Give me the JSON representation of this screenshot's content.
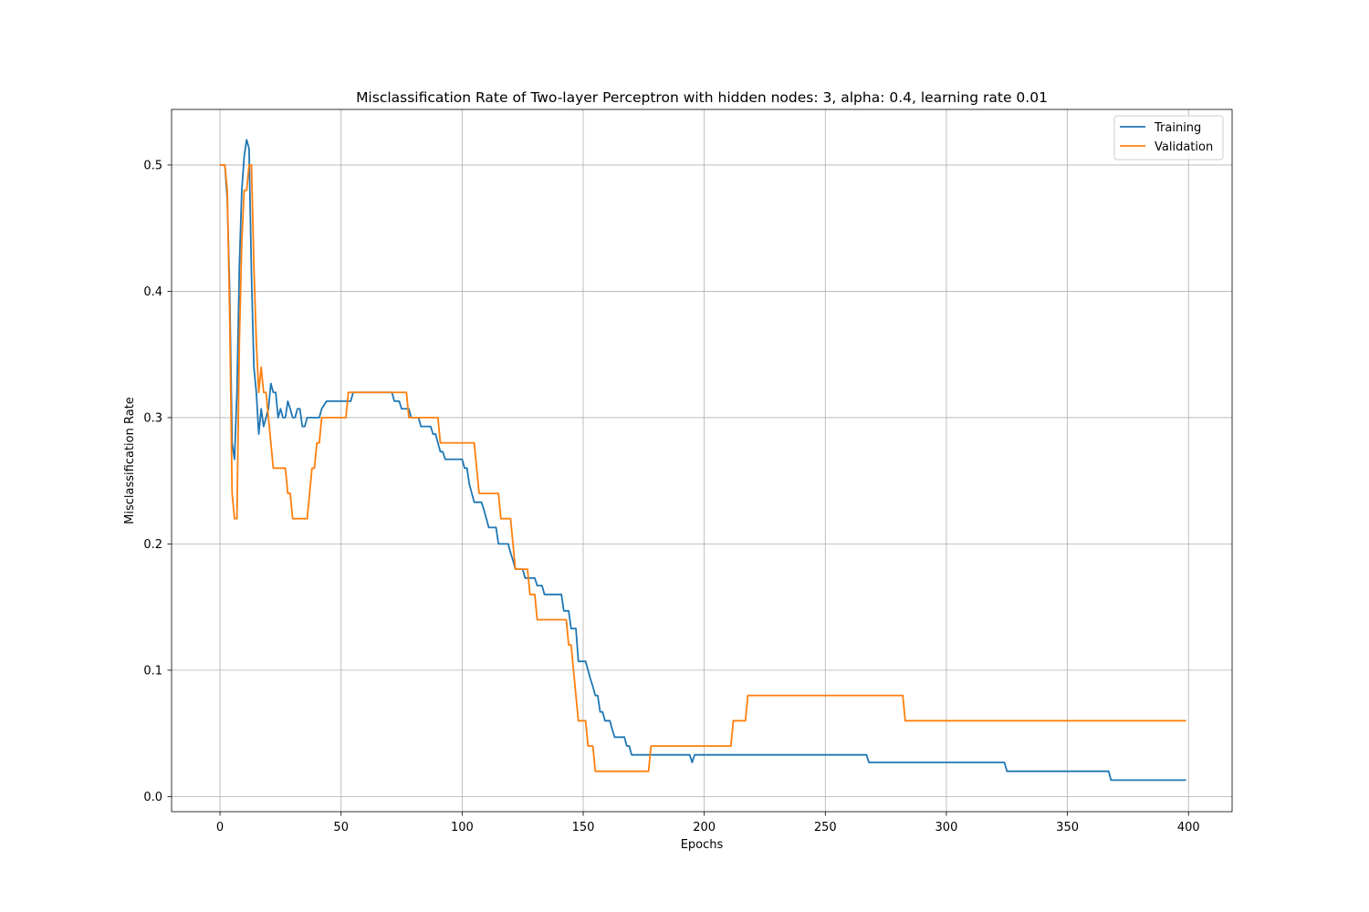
{
  "chart_data": {
    "type": "line",
    "title": "Misclassification Rate of Two-layer Perceptron with hidden nodes: 3, alpha: 0.4, learning rate 0.01",
    "xlabel": "Epochs",
    "ylabel": "Misclassification Rate",
    "xlim": [
      -20,
      418
    ],
    "ylim": [
      -0.012,
      0.544
    ],
    "x_ticks": [
      0,
      50,
      100,
      150,
      200,
      250,
      300,
      350,
      400
    ],
    "y_ticks": [
      0.0,
      0.1,
      0.2,
      0.3,
      0.4,
      0.5
    ],
    "x_tick_labels": [
      "0",
      "50",
      "100",
      "150",
      "200",
      "250",
      "300",
      "350",
      "400"
    ],
    "y_tick_labels": [
      "0.0",
      "0.1",
      "0.2",
      "0.3",
      "0.4",
      "0.5"
    ],
    "grid": true,
    "legend_position": "top-right",
    "series": [
      {
        "name": "Training",
        "color": "#1f77b4",
        "points": [
          [
            0,
            0.5
          ],
          [
            2,
            0.5
          ],
          [
            3,
            0.473
          ],
          [
            4,
            0.4
          ],
          [
            5,
            0.28
          ],
          [
            6,
            0.267
          ],
          [
            7,
            0.32
          ],
          [
            8,
            0.42
          ],
          [
            9,
            0.48
          ],
          [
            10,
            0.507
          ],
          [
            11,
            0.52
          ],
          [
            12,
            0.513
          ],
          [
            13,
            0.413
          ],
          [
            14,
            0.34
          ],
          [
            15,
            0.32
          ],
          [
            16,
            0.287
          ],
          [
            17,
            0.307
          ],
          [
            18,
            0.293
          ],
          [
            19,
            0.3
          ],
          [
            20,
            0.307
          ],
          [
            21,
            0.327
          ],
          [
            22,
            0.32
          ],
          [
            23,
            0.32
          ],
          [
            24,
            0.3
          ],
          [
            25,
            0.307
          ],
          [
            26,
            0.3
          ],
          [
            27,
            0.3
          ],
          [
            28,
            0.313
          ],
          [
            29,
            0.307
          ],
          [
            30,
            0.3
          ],
          [
            31,
            0.3
          ],
          [
            32,
            0.307
          ],
          [
            33,
            0.307
          ],
          [
            34,
            0.293
          ],
          [
            35,
            0.293
          ],
          [
            36,
            0.3
          ],
          [
            41,
            0.3
          ],
          [
            42,
            0.307
          ],
          [
            44,
            0.313
          ],
          [
            54,
            0.313
          ],
          [
            55,
            0.32
          ],
          [
            71,
            0.32
          ],
          [
            72,
            0.313
          ],
          [
            74,
            0.313
          ],
          [
            75,
            0.307
          ],
          [
            78,
            0.307
          ],
          [
            79,
            0.3
          ],
          [
            82,
            0.3
          ],
          [
            83,
            0.293
          ],
          [
            87,
            0.293
          ],
          [
            88,
            0.287
          ],
          [
            89,
            0.287
          ],
          [
            90,
            0.28
          ],
          [
            91,
            0.273
          ],
          [
            92,
            0.273
          ],
          [
            93,
            0.267
          ],
          [
            100,
            0.267
          ],
          [
            101,
            0.26
          ],
          [
            102,
            0.26
          ],
          [
            103,
            0.247
          ],
          [
            104,
            0.24
          ],
          [
            105,
            0.233
          ],
          [
            108,
            0.233
          ],
          [
            109,
            0.227
          ],
          [
            110,
            0.22
          ],
          [
            111,
            0.213
          ],
          [
            114,
            0.213
          ],
          [
            115,
            0.2
          ],
          [
            119,
            0.2
          ],
          [
            120,
            0.193
          ],
          [
            121,
            0.187
          ],
          [
            122,
            0.18
          ],
          [
            125,
            0.18
          ],
          [
            126,
            0.173
          ],
          [
            130,
            0.173
          ],
          [
            131,
            0.167
          ],
          [
            133,
            0.167
          ],
          [
            134,
            0.16
          ],
          [
            141,
            0.16
          ],
          [
            142,
            0.147
          ],
          [
            144,
            0.147
          ],
          [
            145,
            0.133
          ],
          [
            147,
            0.133
          ],
          [
            148,
            0.107
          ],
          [
            151,
            0.107
          ],
          [
            152,
            0.1
          ],
          [
            153,
            0.093
          ],
          [
            154,
            0.087
          ],
          [
            155,
            0.08
          ],
          [
            156,
            0.08
          ],
          [
            157,
            0.067
          ],
          [
            158,
            0.067
          ],
          [
            159,
            0.06
          ],
          [
            161,
            0.06
          ],
          [
            162,
            0.053
          ],
          [
            163,
            0.047
          ],
          [
            167,
            0.047
          ],
          [
            168,
            0.04
          ],
          [
            169,
            0.04
          ],
          [
            170,
            0.033
          ],
          [
            194,
            0.033
          ],
          [
            195,
            0.027
          ],
          [
            196,
            0.033
          ],
          [
            267,
            0.033
          ],
          [
            268,
            0.027
          ],
          [
            324,
            0.027
          ],
          [
            325,
            0.02
          ],
          [
            367,
            0.02
          ],
          [
            368,
            0.013
          ],
          [
            399,
            0.013
          ]
        ]
      },
      {
        "name": "Validation",
        "color": "#ff7f0e",
        "points": [
          [
            0,
            0.5
          ],
          [
            2,
            0.5
          ],
          [
            3,
            0.48
          ],
          [
            4,
            0.38
          ],
          [
            5,
            0.24
          ],
          [
            6,
            0.22
          ],
          [
            7,
            0.22
          ],
          [
            8,
            0.36
          ],
          [
            9,
            0.44
          ],
          [
            10,
            0.48
          ],
          [
            11,
            0.48
          ],
          [
            12,
            0.5
          ],
          [
            13,
            0.5
          ],
          [
            14,
            0.42
          ],
          [
            15,
            0.36
          ],
          [
            16,
            0.32
          ],
          [
            17,
            0.34
          ],
          [
            18,
            0.32
          ],
          [
            19,
            0.32
          ],
          [
            20,
            0.3
          ],
          [
            21,
            0.28
          ],
          [
            22,
            0.26
          ],
          [
            27,
            0.26
          ],
          [
            28,
            0.24
          ],
          [
            29,
            0.24
          ],
          [
            30,
            0.22
          ],
          [
            36,
            0.22
          ],
          [
            37,
            0.24
          ],
          [
            38,
            0.26
          ],
          [
            39,
            0.26
          ],
          [
            40,
            0.28
          ],
          [
            41,
            0.28
          ],
          [
            42,
            0.3
          ],
          [
            52,
            0.3
          ],
          [
            53,
            0.32
          ],
          [
            77,
            0.32
          ],
          [
            78,
            0.3
          ],
          [
            90,
            0.3
          ],
          [
            91,
            0.28
          ],
          [
            105,
            0.28
          ],
          [
            107,
            0.24
          ],
          [
            115,
            0.24
          ],
          [
            116,
            0.22
          ],
          [
            120,
            0.22
          ],
          [
            122,
            0.18
          ],
          [
            127,
            0.18
          ],
          [
            128,
            0.16
          ],
          [
            130,
            0.16
          ],
          [
            131,
            0.14
          ],
          [
            143,
            0.14
          ],
          [
            144,
            0.12
          ],
          [
            145,
            0.12
          ],
          [
            148,
            0.06
          ],
          [
            151,
            0.06
          ],
          [
            152,
            0.04
          ],
          [
            154,
            0.04
          ],
          [
            155,
            0.02
          ],
          [
            177,
            0.02
          ],
          [
            178,
            0.04
          ],
          [
            211,
            0.04
          ],
          [
            212,
            0.06
          ],
          [
            217,
            0.06
          ],
          [
            218,
            0.08
          ],
          [
            282,
            0.08
          ],
          [
            283,
            0.06
          ],
          [
            399,
            0.06
          ]
        ]
      }
    ]
  }
}
